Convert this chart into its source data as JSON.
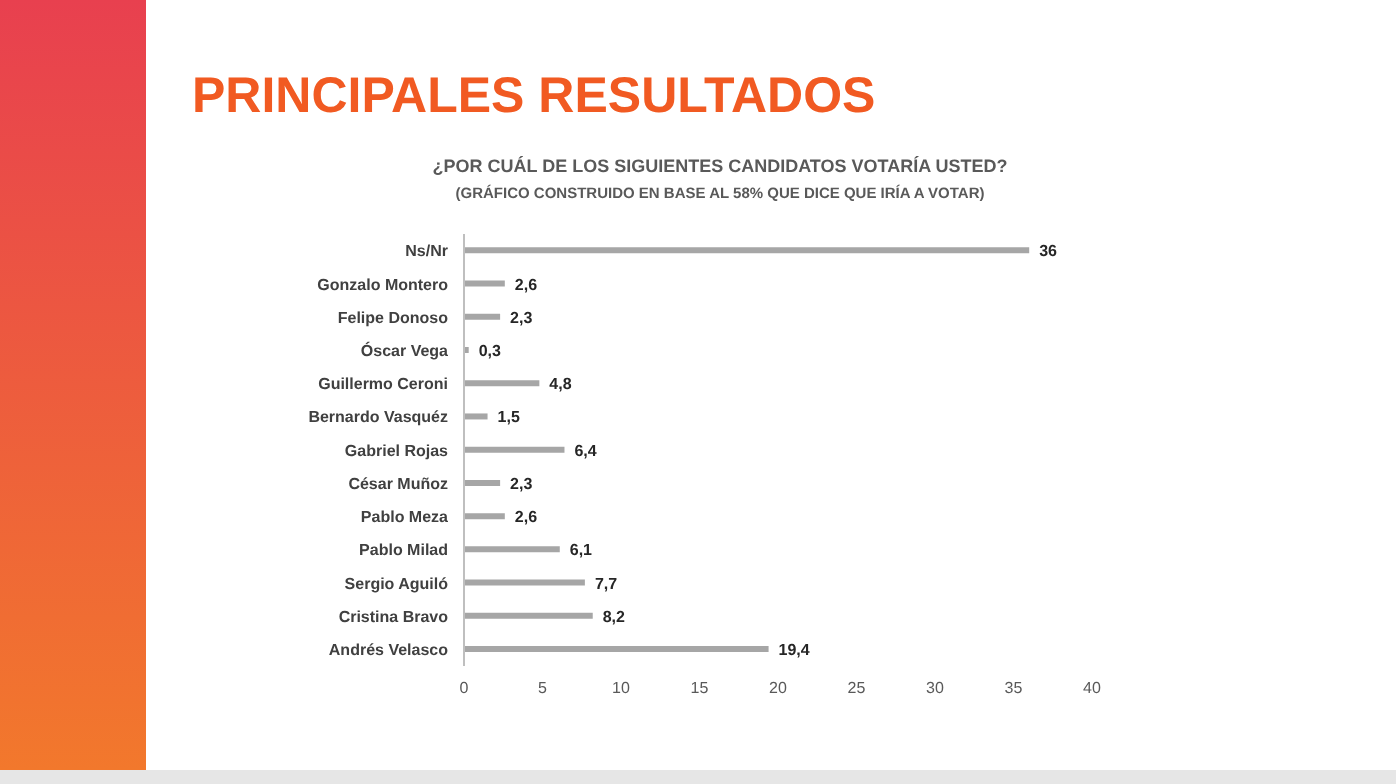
{
  "chart_data": {
    "type": "bar",
    "orientation": "horizontal",
    "title": "¿POR CUÁL DE LOS SIGUIENTES CANDIDATOS VOTARÍA USTED?",
    "subtitle": "(GRÁFICO CONSTRUIDO EN BASE AL 58% QUE DICE QUE IRÍA A VOTAR)",
    "annotations": [
      "PRINCIPALES RESULTADOS"
    ],
    "categories": [
      "Ns/Nr",
      "Gonzalo Montero",
      "Felipe Donoso",
      "Óscar Vega",
      "Guillermo Ceroni",
      "Bernardo Vasquéz",
      "Gabriel Rojas",
      "César Muñoz",
      "Pablo Meza",
      "Pablo Milad",
      "Sergio Aguiló",
      "Cristina Bravo",
      "Andrés Velasco"
    ],
    "values": [
      36,
      2.6,
      2.3,
      0.3,
      4.8,
      1.5,
      6.4,
      2.3,
      2.6,
      6.1,
      7.7,
      8.2,
      19.4
    ],
    "value_labels": [
      "36",
      "2,6",
      "2,3",
      "0,3",
      "4,8",
      "1,5",
      "6,4",
      "2,3",
      "2,6",
      "6,1",
      "7,7",
      "8,2",
      "19,4"
    ],
    "color": "#a6a6a6",
    "xlim": [
      0,
      40
    ],
    "xticks": [
      0,
      5,
      10,
      15,
      20,
      25,
      30,
      35,
      40
    ]
  }
}
